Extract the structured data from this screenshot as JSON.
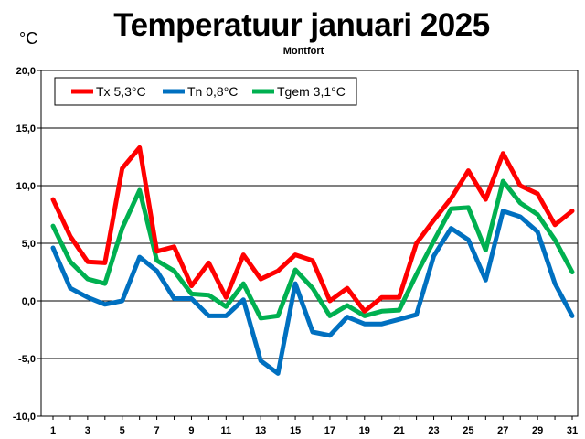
{
  "chart_data": {
    "type": "line",
    "title": "Temperatuur januari 2025",
    "subtitle": "Montfort",
    "unit_label": "°C",
    "ylim": [
      -10,
      20
    ],
    "yticks": [
      "-10,0",
      "-5,0",
      "0,0",
      "5,0",
      "10,0",
      "15,0",
      "20,0"
    ],
    "ytick_values": [
      -10,
      -5,
      0,
      5,
      10,
      15,
      20
    ],
    "xlim": [
      1,
      31
    ],
    "xticks": [
      "1",
      "3",
      "5",
      "7",
      "9",
      "11",
      "13",
      "15",
      "17",
      "19",
      "21",
      "23",
      "25",
      "27",
      "29",
      "31"
    ],
    "xtick_values": [
      1,
      3,
      5,
      7,
      9,
      11,
      13,
      15,
      17,
      19,
      21,
      23,
      25,
      27,
      29,
      31
    ],
    "grid": true,
    "legend_position": "top-left",
    "x": [
      1,
      2,
      3,
      4,
      5,
      6,
      7,
      8,
      9,
      10,
      11,
      12,
      13,
      14,
      15,
      16,
      17,
      18,
      19,
      20,
      21,
      22,
      23,
      24,
      25,
      26,
      27,
      28,
      29,
      30,
      31
    ],
    "series": [
      {
        "name": "Tx 5,3°C",
        "color": "#ff0000",
        "values": [
          8.8,
          5.6,
          3.4,
          3.3,
          11.5,
          13.3,
          4.3,
          4.7,
          1.3,
          3.3,
          0.3,
          4.0,
          1.9,
          2.6,
          4.0,
          3.5,
          0.0,
          1.1,
          -0.9,
          0.3,
          0.3,
          5.0,
          7.0,
          8.9,
          11.3,
          8.8,
          12.8,
          10.0,
          9.3,
          6.6,
          7.8
        ]
      },
      {
        "name": "Tn 0,8°C",
        "color": "#0070c0",
        "values": [
          4.6,
          1.1,
          0.3,
          -0.3,
          0.0,
          3.8,
          2.6,
          0.2,
          0.2,
          -1.3,
          -1.3,
          0.1,
          -5.2,
          -6.3,
          1.5,
          -2.7,
          -3.0,
          -1.4,
          -2.0,
          -2.0,
          -1.6,
          -1.2,
          3.9,
          6.3,
          5.3,
          1.8,
          7.8,
          7.3,
          6.0,
          1.5,
          -1.3
        ]
      },
      {
        "name": "Tgem 3,1°C",
        "color": "#00b050",
        "values": [
          6.5,
          3.4,
          1.9,
          1.5,
          6.3,
          9.6,
          3.5,
          2.6,
          0.6,
          0.5,
          -0.5,
          1.5,
          -1.5,
          -1.3,
          2.7,
          1.1,
          -1.3,
          -0.4,
          -1.3,
          -0.9,
          -0.8,
          2.3,
          5.2,
          8.0,
          8.1,
          4.4,
          10.4,
          8.5,
          7.5,
          5.3,
          2.5
        ]
      }
    ]
  }
}
